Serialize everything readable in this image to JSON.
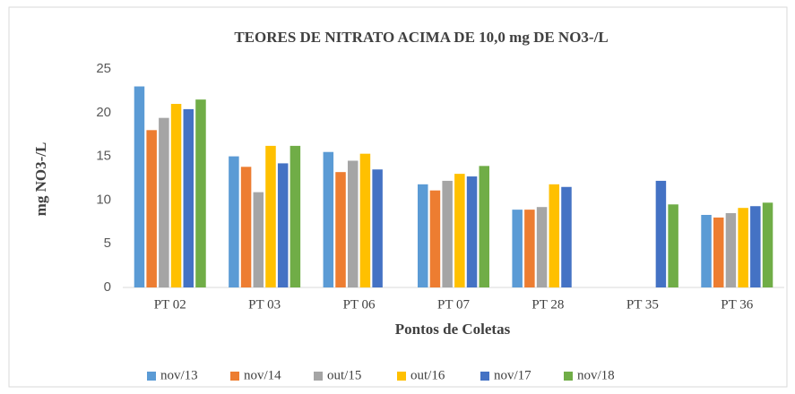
{
  "chart_data": {
    "type": "bar",
    "title": "TEORES DE NITRATO  ACIMA DE 10,0 mg DE NO3-/L",
    "x_label": "Pontos de Coletas",
    "y_label": "mg NO3-/L",
    "categories": [
      "PT 02",
      "PT 03",
      "PT 06",
      "PT 07",
      "PT 28",
      "PT 35",
      "PT 36"
    ],
    "series": [
      {
        "name": "nov/13",
        "color": "#5b9bd5",
        "values": [
          23.0,
          15.0,
          15.5,
          11.8,
          8.9,
          null,
          8.3
        ]
      },
      {
        "name": "nov/14",
        "color": "#ed7d31",
        "values": [
          18.0,
          13.8,
          13.2,
          11.1,
          8.9,
          null,
          8.0
        ]
      },
      {
        "name": "out/15",
        "color": "#a5a5a5",
        "values": [
          19.4,
          10.9,
          14.5,
          12.2,
          9.2,
          null,
          8.5
        ]
      },
      {
        "name": "out/16",
        "color": "#ffc000",
        "values": [
          21.0,
          16.2,
          15.3,
          13.0,
          11.8,
          null,
          9.1
        ]
      },
      {
        "name": "nov/17",
        "color": "#4472c4",
        "values": [
          20.4,
          14.2,
          13.5,
          12.7,
          11.5,
          12.2,
          9.3
        ]
      },
      {
        "name": "nov/18",
        "color": "#70ad47",
        "values": [
          21.5,
          16.2,
          null,
          13.9,
          null,
          9.5,
          9.7
        ]
      }
    ],
    "ylim": [
      0,
      25
    ],
    "yticks": [
      0,
      5,
      10,
      15,
      20,
      25
    ],
    "grid": false,
    "legend": "bottom"
  }
}
